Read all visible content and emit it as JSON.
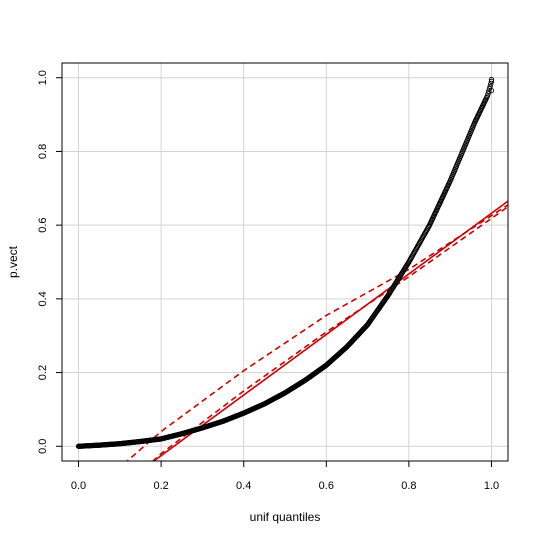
{
  "chart_data": {
    "type": "scatter",
    "title": "",
    "xlabel": "unif quantiles",
    "ylabel": "p.vect",
    "xlim": [
      -0.04,
      1.04
    ],
    "ylim": [
      -0.04,
      1.04
    ],
    "x_ticks": [
      "0.0",
      "0.2",
      "0.4",
      "0.6",
      "0.8",
      "1.0"
    ],
    "y_ticks": [
      "0.0",
      "0.2",
      "0.4",
      "0.6",
      "0.8",
      "1.0"
    ],
    "grid": true,
    "point_color": "#000000",
    "line_color": "#cc0000",
    "curve_knots": {
      "x": [
        0.0,
        0.05,
        0.1,
        0.15,
        0.2,
        0.25,
        0.3,
        0.35,
        0.4,
        0.45,
        0.5,
        0.55,
        0.6,
        0.65,
        0.7,
        0.75,
        0.8,
        0.85,
        0.9,
        0.93,
        0.96,
        0.99,
        1.0
      ],
      "y": [
        0.0,
        0.003,
        0.007,
        0.013,
        0.02,
        0.034,
        0.05,
        0.068,
        0.09,
        0.115,
        0.145,
        0.18,
        0.22,
        0.27,
        0.33,
        0.41,
        0.5,
        0.6,
        0.72,
        0.8,
        0.88,
        0.95,
        0.99
      ]
    },
    "series": [
      {
        "type": "line",
        "style": "solid",
        "x": [
          0.0,
          1.04
        ],
        "y": [
          -0.19,
          0.665
        ]
      },
      {
        "type": "line",
        "style": "dashed",
        "x": [
          0.0,
          0.2,
          0.4,
          0.6,
          0.8,
          1.04
        ],
        "y": [
          -0.155,
          0.04,
          0.205,
          0.355,
          0.48,
          0.655
        ]
      },
      {
        "type": "line",
        "style": "dashed",
        "x": [
          0.0,
          0.2,
          0.4,
          0.6,
          0.8,
          1.04
        ],
        "y": [
          -0.225,
          -0.02,
          0.15,
          0.31,
          0.46,
          0.65
        ]
      }
    ],
    "extra_points": [
      {
        "x": 1.0,
        "y": 0.995
      },
      {
        "x": 1.0,
        "y": 0.965
      }
    ]
  }
}
